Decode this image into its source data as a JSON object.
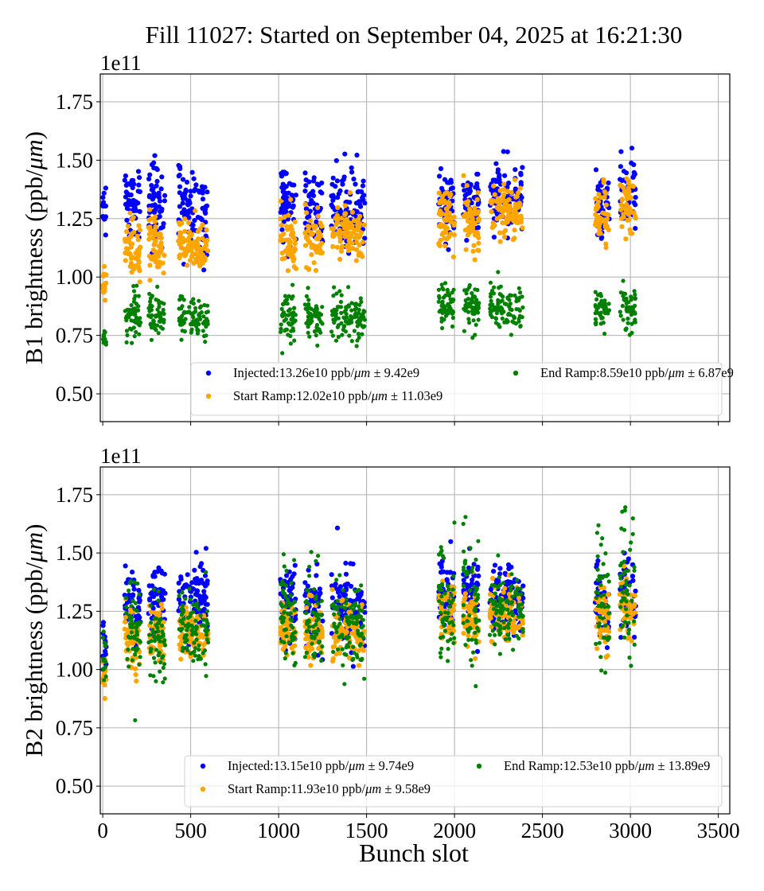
{
  "chart_data": {
    "type": "scatter",
    "title": "Fill 11027: Started on September 04, 2025 at 16:21:30",
    "xlabel": "Bunch slot",
    "xlim": [
      -14,
      3565
    ],
    "xticks": [
      0,
      500,
      1000,
      1500,
      2000,
      2500,
      3000,
      3500
    ],
    "xtick_labels": [
      "0",
      "500",
      "1000",
      "1500",
      "2000",
      "2500",
      "3000",
      "3500"
    ],
    "grid": true,
    "legend_placement": "lower-right",
    "series_colors": {
      "Injected": "#0000ff",
      "Start Ramp": "#ffa500",
      "End Ramp": "#008000"
    },
    "panels": [
      {
        "name": "B1",
        "ylabel_prefix": "B1 brightness (ppb/",
        "ylabel_unit": "μm",
        "ylabel_suffix": ")",
        "offset_text": "1e11",
        "ylim": [
          0.381,
          1.869
        ],
        "yticks": [
          0.5,
          0.75,
          1.0,
          1.25,
          1.5,
          1.75
        ],
        "ytick_labels": [
          "0.50",
          "0.75",
          "1.00",
          "1.25",
          "1.50",
          "1.75"
        ],
        "legend": [
          {
            "series": "Injected",
            "label_prefix": "Injected:13.26e10 ppb/",
            "unit": "μm",
            "label_suffix": " ± 9.42e9",
            "mean_e10": 13.26,
            "std_e9": 9.42
          },
          {
            "series": "Start Ramp",
            "label_prefix": "Start Ramp:12.02e10 ppb/",
            "unit": "μm",
            "label_suffix": " ± 11.03e9",
            "mean_e10": 12.02,
            "std_e9": 11.03
          },
          {
            "series": "End Ramp",
            "label_prefix": "End Ramp:8.59e10 ppb/",
            "unit": "μm",
            "label_suffix": " ± 6.87e9",
            "mean_e10": 8.59,
            "std_e9": 6.87
          }
        ],
        "clusters": [
          {
            "x": [
              0,
              20
            ],
            "n": 14,
            "Injected": [
              1.24,
              0.07
            ],
            "Start Ramp": [
              0.95,
              0.06
            ],
            "End Ramp": [
              0.74,
              0.03
            ]
          },
          {
            "x": [
              125,
              215
            ],
            "n": 55,
            "Injected": [
              1.34,
              0.09
            ],
            "Start Ramp": [
              1.13,
              0.07
            ],
            "End Ramp": [
              0.83,
              0.06
            ]
          },
          {
            "x": [
              260,
              355
            ],
            "n": 55,
            "Injected": [
              1.32,
              0.1
            ],
            "Start Ramp": [
              1.14,
              0.07
            ],
            "End Ramp": [
              0.84,
              0.06
            ]
          },
          {
            "x": [
              430,
              600
            ],
            "n": 90,
            "Injected": [
              1.3,
              0.09
            ],
            "Start Ramp": [
              1.14,
              0.05
            ],
            "End Ramp": [
              0.82,
              0.05
            ]
          },
          {
            "x": [
              1010,
              1100
            ],
            "n": 55,
            "Injected": [
              1.3,
              0.08
            ],
            "Start Ramp": [
              1.16,
              0.07
            ],
            "End Ramp": [
              0.84,
              0.06
            ]
          },
          {
            "x": [
              1150,
              1250
            ],
            "n": 55,
            "Injected": [
              1.29,
              0.08
            ],
            "Start Ramp": [
              1.16,
              0.06
            ],
            "End Ramp": [
              0.83,
              0.05
            ]
          },
          {
            "x": [
              1300,
              1490
            ],
            "n": 95,
            "Injected": [
              1.3,
              0.1
            ],
            "Start Ramp": [
              1.18,
              0.06
            ],
            "End Ramp": [
              0.83,
              0.05
            ]
          },
          {
            "x": [
              1910,
              2000
            ],
            "n": 55,
            "Injected": [
              1.32,
              0.08
            ],
            "Start Ramp": [
              1.25,
              0.07
            ],
            "End Ramp": [
              0.88,
              0.05
            ]
          },
          {
            "x": [
              2050,
              2140
            ],
            "n": 55,
            "Injected": [
              1.32,
              0.07
            ],
            "Start Ramp": [
              1.24,
              0.07
            ],
            "End Ramp": [
              0.87,
              0.05
            ]
          },
          {
            "x": [
              2200,
              2390
            ],
            "n": 95,
            "Injected": [
              1.35,
              0.08
            ],
            "Start Ramp": [
              1.29,
              0.06
            ],
            "End Ramp": [
              0.87,
              0.05
            ]
          },
          {
            "x": [
              2800,
              2880
            ],
            "n": 45,
            "Injected": [
              1.3,
              0.08
            ],
            "Start Ramp": [
              1.25,
              0.07
            ],
            "End Ramp": [
              0.85,
              0.05
            ]
          },
          {
            "x": [
              2940,
              3030
            ],
            "n": 50,
            "Injected": [
              1.36,
              0.08
            ],
            "Start Ramp": [
              1.31,
              0.08
            ],
            "End Ramp": [
              0.88,
              0.06
            ]
          }
        ]
      },
      {
        "name": "B2",
        "ylabel_prefix": "B2 brightness (ppb/",
        "ylabel_unit": "μm",
        "ylabel_suffix": ")",
        "offset_text": "1e11",
        "ylim": [
          0.381,
          1.869
        ],
        "yticks": [
          0.5,
          0.75,
          1.0,
          1.25,
          1.5,
          1.75
        ],
        "ytick_labels": [
          "0.50",
          "0.75",
          "1.00",
          "1.25",
          "1.50",
          "1.75"
        ],
        "legend": [
          {
            "series": "Injected",
            "label_prefix": "Injected:13.15e10 ppb/",
            "unit": "μm",
            "label_suffix": " ± 9.74e9",
            "mean_e10": 13.15,
            "std_e9": 9.74
          },
          {
            "series": "Start Ramp",
            "label_prefix": "Start Ramp:11.93e10 ppb/",
            "unit": "μm",
            "label_suffix": " ± 9.58e9",
            "mean_e10": 11.93,
            "std_e9": 9.58
          },
          {
            "series": "End Ramp",
            "label_prefix": "End Ramp:12.53e10 ppb/",
            "unit": "μm",
            "label_suffix": " ± 13.89e9",
            "mean_e10": 12.53,
            "std_e9": 13.89
          }
        ],
        "clusters": [
          {
            "x": [
              0,
              20
            ],
            "n": 14,
            "Injected": [
              1.1,
              0.08
            ],
            "Start Ramp": [
              0.95,
              0.05
            ],
            "End Ramp": [
              1.05,
              0.08
            ]
          },
          {
            "x": [
              125,
              215
            ],
            "n": 55,
            "Injected": [
              1.28,
              0.1
            ],
            "Start Ramp": [
              1.13,
              0.08
            ],
            "End Ramp": [
              1.18,
              0.11
            ]
          },
          {
            "x": [
              260,
              355
            ],
            "n": 55,
            "Injected": [
              1.3,
              0.09
            ],
            "Start Ramp": [
              1.14,
              0.07
            ],
            "End Ramp": [
              1.15,
              0.1
            ]
          },
          {
            "x": [
              430,
              600
            ],
            "n": 90,
            "Injected": [
              1.3,
              0.09
            ],
            "Start Ramp": [
              1.16,
              0.06
            ],
            "End Ramp": [
              1.19,
              0.09
            ]
          },
          {
            "x": [
              1010,
              1100
            ],
            "n": 55,
            "Injected": [
              1.28,
              0.09
            ],
            "Start Ramp": [
              1.17,
              0.07
            ],
            "End Ramp": [
              1.22,
              0.11
            ]
          },
          {
            "x": [
              1150,
              1250
            ],
            "n": 55,
            "Injected": [
              1.27,
              0.09
            ],
            "Start Ramp": [
              1.16,
              0.07
            ],
            "End Ramp": [
              1.2,
              0.1
            ]
          },
          {
            "x": [
              1300,
              1490
            ],
            "n": 95,
            "Injected": [
              1.28,
              0.1
            ],
            "Start Ramp": [
              1.16,
              0.07
            ],
            "End Ramp": [
              1.2,
              0.1
            ]
          },
          {
            "x": [
              1910,
              2000
            ],
            "n": 55,
            "Injected": [
              1.32,
              0.09
            ],
            "Start Ramp": [
              1.24,
              0.08
            ],
            "End Ramp": [
              1.26,
              0.17
            ]
          },
          {
            "x": [
              2050,
              2140
            ],
            "n": 55,
            "Injected": [
              1.33,
              0.08
            ],
            "Start Ramp": [
              1.23,
              0.07
            ],
            "End Ramp": [
              1.28,
              0.18
            ]
          },
          {
            "x": [
              2200,
              2390
            ],
            "n": 95,
            "Injected": [
              1.33,
              0.08
            ],
            "Start Ramp": [
              1.22,
              0.07
            ],
            "End Ramp": [
              1.24,
              0.09
            ]
          },
          {
            "x": [
              2800,
              2880
            ],
            "n": 45,
            "Injected": [
              1.28,
              0.1
            ],
            "Start Ramp": [
              1.2,
              0.08
            ],
            "End Ramp": [
              1.26,
              0.16
            ]
          },
          {
            "x": [
              2940,
              3030
            ],
            "n": 50,
            "Injected": [
              1.33,
              0.09
            ],
            "Start Ramp": [
              1.25,
              0.08
            ],
            "End Ramp": [
              1.33,
              0.16
            ]
          }
        ]
      }
    ]
  }
}
